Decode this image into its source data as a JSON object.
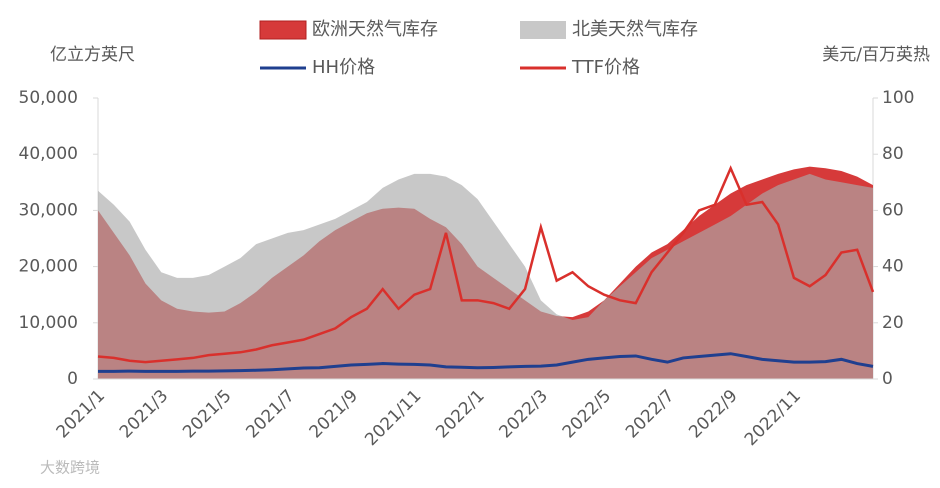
{
  "chart_data": {
    "type": "line",
    "y_label": "亿立方英尺",
    "y2_label": "美元/百万英热",
    "watermark": "大数跨境",
    "categories": [
      "2021/1",
      null,
      null,
      null,
      "2021/3",
      null,
      null,
      null,
      "2021/5",
      null,
      null,
      null,
      "2021/7",
      null,
      null,
      null,
      "2021/9",
      null,
      null,
      null,
      "2021/11",
      null,
      null,
      null,
      "2022/1",
      null,
      null,
      null,
      "2022/3",
      null,
      null,
      null,
      "2022/5",
      null,
      null,
      null,
      "2022/7",
      null,
      null,
      null,
      "2022/9",
      null,
      null,
      null,
      "2022/11",
      null,
      null,
      null,
      null,
      null
    ],
    "ylim": [
      0,
      50000
    ],
    "yticks": [
      {
        "value": 0,
        "label": "0"
      },
      {
        "value": 10000,
        "label": "10,000"
      },
      {
        "value": 20000,
        "label": "20,000"
      },
      {
        "value": 30000,
        "label": "30,000"
      },
      {
        "value": 40000,
        "label": "40,000"
      },
      {
        "value": 50000,
        "label": "50,000"
      }
    ],
    "y2lim": [
      0,
      100
    ],
    "y2ticks": [
      0,
      20,
      40,
      60,
      80,
      100
    ],
    "series": [
      {
        "name": "欧洲天然气库存",
        "type": "area",
        "color": "#d63a3a",
        "values": [
          30000,
          26000,
          22000,
          17000,
          14000,
          12500,
          12000,
          11800,
          12000,
          13500,
          15500,
          18000,
          20000,
          22000,
          24500,
          26500,
          28000,
          29500,
          30300,
          30500,
          30300,
          28500,
          27000,
          24000,
          20000,
          18000,
          16000,
          14000,
          12000,
          11200,
          11000,
          12000,
          14000,
          17000,
          20000,
          22500,
          24000,
          26500,
          29000,
          31000,
          33000,
          34500,
          35500,
          36500,
          37300,
          37800,
          37500,
          37000,
          36000,
          34500
        ]
      },
      {
        "name": "北美天然气库存",
        "type": "area",
        "color": "#aaaaaa",
        "values": [
          33500,
          31000,
          28000,
          23000,
          19000,
          18000,
          18000,
          18500,
          20000,
          21500,
          24000,
          25000,
          26000,
          26500,
          27500,
          28500,
          30000,
          31500,
          34000,
          35500,
          36500,
          36500,
          36000,
          34500,
          32000,
          28000,
          24000,
          20000,
          14000,
          11500,
          10500,
          11000,
          14000,
          16500,
          19000,
          21500,
          23000,
          24500,
          26000,
          27500,
          29000,
          31000,
          33000,
          34500,
          35500,
          36500,
          35500,
          35000,
          34500,
          34000
        ]
      },
      {
        "name": "HH价格",
        "type": "line",
        "axis": "y2",
        "color": "#1f3f8f",
        "values": [
          2.7,
          2.7,
          2.8,
          2.7,
          2.7,
          2.7,
          2.8,
          2.8,
          2.9,
          3.0,
          3.1,
          3.3,
          3.6,
          3.9,
          4.0,
          4.5,
          5.0,
          5.2,
          5.5,
          5.3,
          5.2,
          5.0,
          4.3,
          4.2,
          4.0,
          4.1,
          4.3,
          4.5,
          4.6,
          5.0,
          6.0,
          7.0,
          7.5,
          8.0,
          8.2,
          7.0,
          6.0,
          7.5,
          8.0,
          8.5,
          9.0,
          8.0,
          7.0,
          6.5,
          6.0,
          6.0,
          6.2,
          7.0,
          5.5,
          4.5
        ]
      },
      {
        "name": "TTF价格",
        "type": "line",
        "axis": "y2",
        "color": "#d9302c",
        "values": [
          8,
          7.5,
          6.5,
          6,
          6.5,
          7,
          7.5,
          8.5,
          9,
          9.5,
          10.5,
          12,
          13,
          14,
          16,
          18,
          22,
          25,
          32,
          25,
          30,
          32,
          52,
          28,
          28,
          27,
          25,
          32,
          54,
          35,
          38,
          33,
          30,
          28,
          27,
          38,
          45,
          52,
          60,
          62,
          75,
          62,
          63,
          55,
          36,
          33,
          37,
          45,
          46,
          31
        ]
      }
    ]
  }
}
